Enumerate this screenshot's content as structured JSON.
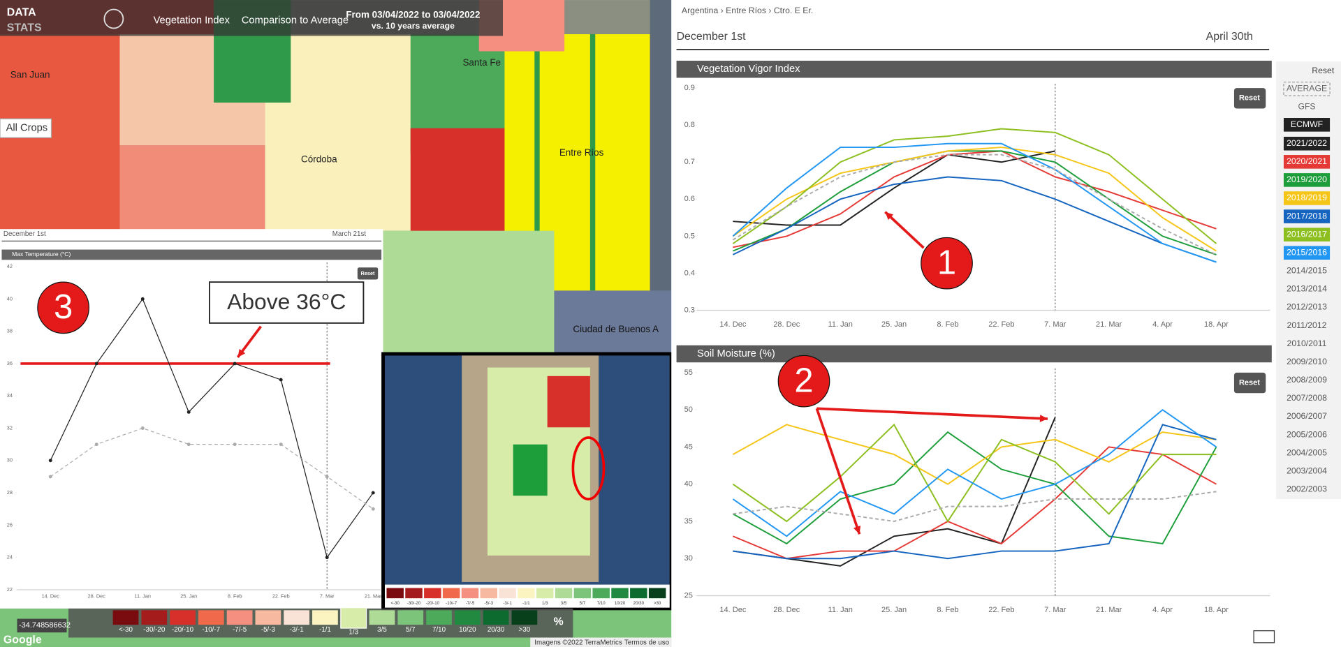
{
  "header": {
    "brand_top": "DATA",
    "brand_bottom": "STATS",
    "tabs": [
      "Vegetation Index",
      "Comparison to Average"
    ],
    "range": "From 03/04/2022 to 03/04/2022",
    "range_sub": "vs. 10 years average"
  },
  "map": {
    "crop_filter": "All Crops",
    "places": [
      "San Juan",
      "Santa Fe",
      "Córdoba",
      "Entre Ríos",
      "Ciudad de Buenos A"
    ],
    "coordinate": "-34.748586632",
    "percent_button": "%",
    "attribution": "Imagens ©2022 TerraMetrics",
    "terms": "Termos de uso",
    "google": "Google",
    "legend": [
      {
        "label": "<-30",
        "color": "#7a0c10"
      },
      {
        "label": "-30/-20",
        "color": "#a51c1c"
      },
      {
        "label": "-20/-10",
        "color": "#d7302a"
      },
      {
        "label": "-10/-7",
        "color": "#f0694a"
      },
      {
        "label": "-7/-5",
        "color": "#f59080"
      },
      {
        "label": "-5/-3",
        "color": "#f7b9a0"
      },
      {
        "label": "-3/-1",
        "color": "#f8e3d6"
      },
      {
        "label": "-1/1",
        "color": "#fbf4c0"
      },
      {
        "label": "1/3",
        "color": "#d8ecaa"
      },
      {
        "label": "3/5",
        "color": "#aedb95"
      },
      {
        "label": "5/7",
        "color": "#7cc47a"
      },
      {
        "label": "7/10",
        "color": "#4caa5a"
      },
      {
        "label": "10/20",
        "color": "#218a40"
      },
      {
        "label": "20/30",
        "color": "#0d6b2f"
      },
      {
        "label": ">30",
        "color": "#08401c"
      }
    ]
  },
  "left_panel": {
    "start": "December 1st",
    "end": "March 21st"
  },
  "right_panel": {
    "breadcrumb": "Argentina › Entre Ríos › Ctro. E Er.",
    "start": "December 1st",
    "end": "April 30th"
  },
  "season_selector": {
    "reset": "Reset",
    "options": [
      "AVERAGE",
      "GFS",
      "ECMWF"
    ],
    "seasons": [
      {
        "label": "2021/2022",
        "color": "#222222"
      },
      {
        "label": "2020/2021",
        "color": "#e53935"
      },
      {
        "label": "2019/2020",
        "color": "#1e9e3a"
      },
      {
        "label": "2018/2019",
        "color": "#f5c518"
      },
      {
        "label": "2017/2018",
        "color": "#1565c0"
      },
      {
        "label": "2016/2017",
        "color": "#8cbf1f"
      },
      {
        "label": "2015/2016",
        "color": "#2196f3"
      },
      {
        "label": "2014/2015"
      },
      {
        "label": "2013/2014"
      },
      {
        "label": "2012/2013"
      },
      {
        "label": "2011/2012"
      },
      {
        "label": "2010/2011"
      },
      {
        "label": "2009/2010"
      },
      {
        "label": "2008/2009"
      },
      {
        "label": "2007/2008"
      },
      {
        "label": "2006/2007"
      },
      {
        "label": "2005/2006"
      },
      {
        "label": "2004/2005"
      },
      {
        "label": "2003/2004"
      },
      {
        "label": "2002/2003"
      }
    ]
  },
  "annotations": [
    "1",
    "2",
    "3",
    "Above 36°C"
  ],
  "chart_data": [
    {
      "type": "line",
      "title": "Vegetation Vigor Index",
      "reset": "Reset",
      "categories": [
        "14. Dec",
        "28. Dec",
        "11. Jan",
        "25. Jan",
        "8. Feb",
        "22. Feb",
        "7. Mar",
        "21. Mar",
        "4. Apr",
        "18. Apr"
      ],
      "ylim": [
        0.3,
        0.9
      ],
      "yticks": [
        0.3,
        0.4,
        0.5,
        0.6,
        0.7,
        0.8,
        0.9
      ],
      "series": [
        {
          "color": "#222222",
          "values": [
            0.54,
            0.53,
            0.53,
            0.63,
            0.72,
            0.7,
            0.73,
            null,
            null,
            null
          ]
        },
        {
          "color": "#e53935",
          "values": [
            0.47,
            0.5,
            0.56,
            0.66,
            0.72,
            0.73,
            0.66,
            0.62,
            0.57,
            0.52
          ]
        },
        {
          "color": "#1e9e3a",
          "values": [
            0.46,
            0.52,
            0.62,
            0.7,
            0.73,
            0.73,
            0.7,
            0.6,
            0.5,
            0.45
          ]
        },
        {
          "color": "#f5c518",
          "values": [
            0.5,
            0.6,
            0.67,
            0.7,
            0.73,
            0.74,
            0.72,
            0.67,
            0.55,
            0.46
          ]
        },
        {
          "color": "#1565c0",
          "values": [
            0.45,
            0.52,
            0.6,
            0.64,
            0.66,
            0.65,
            0.6,
            0.54,
            0.48,
            0.43
          ]
        },
        {
          "color": "#8cbf1f",
          "values": [
            0.48,
            0.58,
            0.7,
            0.76,
            0.77,
            0.79,
            0.78,
            0.72,
            0.6,
            0.48
          ]
        },
        {
          "color": "#2196f3",
          "values": [
            0.5,
            0.63,
            0.74,
            0.74,
            0.75,
            0.75,
            0.68,
            0.58,
            0.48,
            0.43
          ]
        },
        {
          "color": "#aaaaaa",
          "style": "dashed",
          "values": [
            0.49,
            0.58,
            0.66,
            0.7,
            0.72,
            0.72,
            0.68,
            0.6,
            0.52,
            0.45
          ]
        }
      ]
    },
    {
      "type": "line",
      "title": "Soil Moisture (%)",
      "reset": "Reset",
      "categories": [
        "14. Dec",
        "28. Dec",
        "11. Jan",
        "25. Jan",
        "8. Feb",
        "22. Feb",
        "7. Mar",
        "21. Mar",
        "4. Apr",
        "18. Apr"
      ],
      "ylim": [
        25,
        55
      ],
      "yticks": [
        25,
        30,
        35,
        40,
        45,
        50,
        55
      ],
      "series": [
        {
          "color": "#222222",
          "values": [
            31,
            30,
            29,
            33,
            34,
            32,
            49,
            null,
            null,
            null
          ]
        },
        {
          "color": "#e53935",
          "values": [
            33,
            30,
            31,
            31,
            35,
            32,
            38,
            45,
            44,
            40
          ]
        },
        {
          "color": "#1e9e3a",
          "values": [
            36,
            32,
            38,
            40,
            47,
            42,
            40,
            33,
            32,
            45
          ]
        },
        {
          "color": "#f5c518",
          "values": [
            44,
            48,
            46,
            44,
            40,
            45,
            46,
            43,
            47,
            46
          ]
        },
        {
          "color": "#1565c0",
          "values": [
            31,
            30,
            30,
            31,
            30,
            31,
            31,
            32,
            48,
            46
          ]
        },
        {
          "color": "#8cbf1f",
          "values": [
            40,
            35,
            41,
            48,
            35,
            46,
            43,
            36,
            44,
            44
          ]
        },
        {
          "color": "#2196f3",
          "values": [
            38,
            33,
            39,
            36,
            42,
            38,
            40,
            44,
            50,
            45
          ]
        },
        {
          "color": "#aaaaaa",
          "style": "dashed",
          "values": [
            36,
            37,
            36,
            35,
            37,
            37,
            38,
            38,
            38,
            39
          ]
        }
      ]
    },
    {
      "type": "line",
      "title": "Max Temperature (°C)",
      "reset": "Reset",
      "markers": true,
      "categories": [
        "14. Dec",
        "28. Dec",
        "11. Jan",
        "25. Jan",
        "8. Feb",
        "22. Feb",
        "7. Mar",
        "21. Mar"
      ],
      "ylim": [
        22,
        42
      ],
      "yticks": [
        22,
        24,
        26,
        28,
        30,
        32,
        34,
        36,
        38,
        40,
        42
      ],
      "threshold": 36,
      "threshold_color": "#e41a1a",
      "series": [
        {
          "color": "#222222",
          "values": [
            30,
            36,
            40,
            33,
            36,
            35,
            24,
            28
          ]
        },
        {
          "color": "#aaaaaa",
          "style": "dashed",
          "values": [
            29,
            31,
            32,
            31,
            31,
            31,
            29,
            27
          ]
        }
      ]
    }
  ]
}
